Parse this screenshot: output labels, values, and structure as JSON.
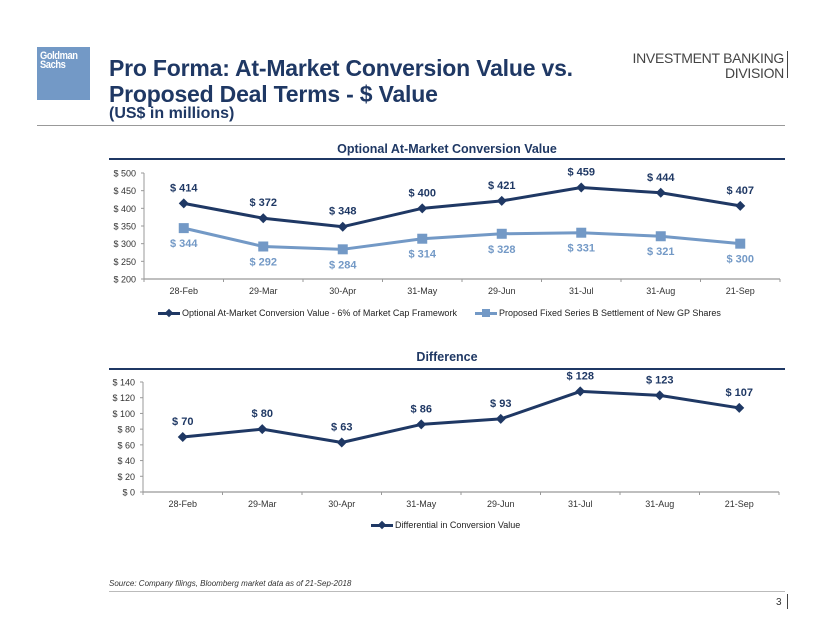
{
  "header": {
    "logo_line1": "Goldman",
    "logo_line2": "Sachs",
    "title_line1": "Pro Forma: At-Market Conversion Value vs.",
    "title_line2": "Proposed Deal Terms - $ Value",
    "subtitle": "(US$ in millions)",
    "division_line1": "INVESTMENT BANKING",
    "division_line2": "DIVISION"
  },
  "colors": {
    "navy": "#1f3864",
    "light_blue": "#7399c6",
    "axis": "#999999"
  },
  "chart_data": [
    {
      "type": "line",
      "title": "Optional At-Market Conversion Value",
      "categories": [
        "28-Feb",
        "29-Mar",
        "30-Apr",
        "31-May",
        "29-Jun",
        "31-Jul",
        "31-Aug",
        "21-Sep"
      ],
      "series": [
        {
          "name": "Optional At-Market Conversion Value - 6% of Market Cap Framework",
          "values": [
            414,
            372,
            348,
            400,
            421,
            459,
            444,
            407
          ],
          "labels": [
            "$ 414",
            "$ 372",
            "$ 348",
            "$ 400",
            "$ 421",
            "$ 459",
            "$ 444",
            "$ 407"
          ],
          "color": "#1f3864",
          "marker": "diamond",
          "label_position": "above"
        },
        {
          "name": "Proposed Fixed Series B Settlement of New GP Shares",
          "values": [
            344,
            292,
            284,
            314,
            328,
            331,
            321,
            300
          ],
          "labels": [
            "$ 344",
            "$ 292",
            "$ 284",
            "$ 314",
            "$ 328",
            "$ 331",
            "$ 321",
            "$ 300"
          ],
          "color": "#7399c6",
          "marker": "square",
          "label_position": "below"
        }
      ],
      "yticks": [
        "$ 200",
        "$ 250",
        "$ 300",
        "$ 350",
        "$ 400",
        "$ 450",
        "$ 500"
      ],
      "ytick_values": [
        200,
        250,
        300,
        350,
        400,
        450,
        500
      ],
      "ylim": [
        200,
        500
      ],
      "xlabel": "",
      "ylabel": "",
      "grid": false,
      "legend_position": "bottom"
    },
    {
      "type": "line",
      "title": "Difference",
      "categories": [
        "28-Feb",
        "29-Mar",
        "30-Apr",
        "31-May",
        "29-Jun",
        "31-Jul",
        "31-Aug",
        "21-Sep"
      ],
      "series": [
        {
          "name": "Differential in Conversion Value",
          "values": [
            70,
            80,
            63,
            86,
            93,
            128,
            123,
            107
          ],
          "labels": [
            "$ 70",
            "$ 80",
            "$ 63",
            "$ 86",
            "$ 93",
            "$ 128",
            "$ 123",
            "$ 107"
          ],
          "color": "#1f3864",
          "marker": "diamond",
          "label_position": "above"
        }
      ],
      "yticks": [
        "$ 0",
        "$ 20",
        "$ 40",
        "$ 60",
        "$ 80",
        "$ 100",
        "$ 120",
        "$ 140"
      ],
      "ytick_values": [
        0,
        20,
        40,
        60,
        80,
        100,
        120,
        140
      ],
      "ylim": [
        0,
        140
      ],
      "xlabel": "",
      "ylabel": "",
      "grid": false,
      "legend_position": "bottom"
    }
  ],
  "footer": {
    "source": "Source: Company filings, Bloomberg market data as of 21-Sep-2018",
    "page_number": "3"
  }
}
